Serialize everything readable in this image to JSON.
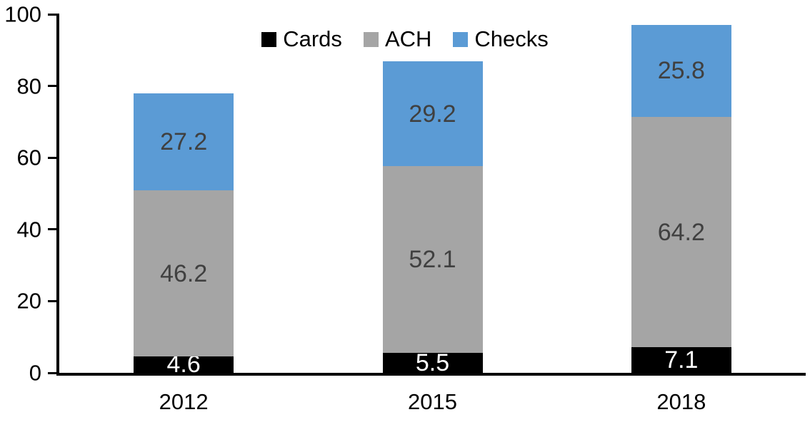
{
  "chart_data": {
    "type": "bar",
    "stacked": true,
    "title": "",
    "xlabel": "",
    "ylabel": "",
    "categories": [
      "2012",
      "2015",
      "2018"
    ],
    "series": [
      {
        "name": "Cards",
        "color": "#000000",
        "label_color": "#ffffff",
        "values": [
          4.6,
          5.5,
          7.1
        ]
      },
      {
        "name": "ACH",
        "color": "#a5a5a5",
        "label_color": "#404040",
        "values": [
          46.2,
          52.1,
          64.2
        ]
      },
      {
        "name": "Checks",
        "color": "#5b9bd5",
        "label_color": "#404040",
        "values": [
          27.2,
          29.2,
          25.8
        ]
      }
    ],
    "totals": [
      78.0,
      86.8,
      97.1
    ],
    "ylim": [
      0,
      100
    ],
    "yticks": [
      0,
      20,
      40,
      60,
      80,
      100
    ],
    "grid": false,
    "legend_position": "top-center",
    "axis_color": "#000000",
    "background_color": "#ffffff"
  }
}
